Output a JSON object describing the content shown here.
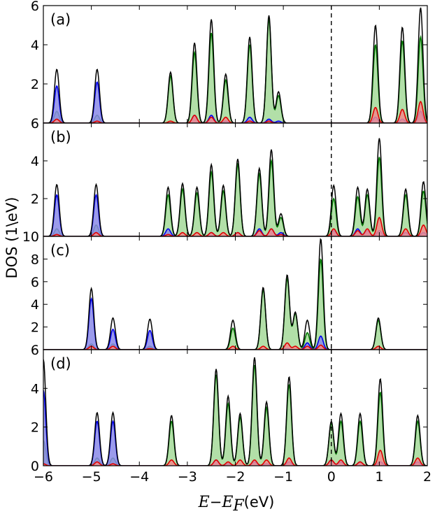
{
  "chart_data": {
    "type": "area",
    "xlabel_parts": [
      "E",
      "−",
      "E",
      "F",
      "(eV)"
    ],
    "ylabel": "DOS (1\\eV)",
    "xlim": [
      -6,
      2
    ],
    "x_ticks": [
      -6,
      -5,
      -4,
      -3,
      -2,
      -1,
      0,
      1,
      2
    ],
    "x_tick_labels": [
      "−6",
      "−5",
      "−4",
      "−3",
      "−2",
      "−1",
      "0",
      "1",
      "2"
    ],
    "fermi_level": 0,
    "gaussian_width_eV": 0.05,
    "colors": {
      "total": "#000000",
      "blue_line": "#0000ee",
      "blue_fill": "#8a8ae8",
      "green_line": "#007a00",
      "green_fill": "#b2dfa8",
      "red_line": "#e00000",
      "red_fill": "#f08c8c"
    },
    "series_roles": [
      "total",
      "blue",
      "green",
      "red"
    ],
    "panels": [
      {
        "label": "(a)",
        "ylim": [
          0,
          6
        ],
        "y_ticks": [
          2,
          4,
          6
        ],
        "y_tick_labels": [
          "2",
          "4",
          "6"
        ],
        "y_bottom_tick_label": "6",
        "peaks": [
          {
            "e": -5.72,
            "b": 1.9,
            "g": 0.6,
            "r": 0.2,
            "t": 2.75
          },
          {
            "e": -4.88,
            "b": 2.1,
            "g": 0.4,
            "r": 0.1,
            "t": 2.75
          },
          {
            "e": -3.35,
            "b": 0.0,
            "g": 2.4,
            "r": 0.1,
            "t": 2.6
          },
          {
            "e": -2.85,
            "b": 0.4,
            "g": 3.6,
            "r": 0.4,
            "t": 4.1
          },
          {
            "e": -2.5,
            "b": 0.4,
            "g": 4.6,
            "r": 0.3,
            "t": 5.3
          },
          {
            "e": -2.2,
            "b": 0.1,
            "g": 2.2,
            "r": 0.3,
            "t": 2.5
          },
          {
            "e": -1.7,
            "b": 0.3,
            "g": 4.0,
            "r": 0.1,
            "t": 4.4
          },
          {
            "e": -1.3,
            "b": 0.2,
            "g": 5.3,
            "r": 0.1,
            "t": 5.5
          },
          {
            "e": -1.1,
            "b": 0.1,
            "g": 1.4,
            "r": 0.0,
            "t": 1.6
          },
          {
            "e": 0.92,
            "b": 0.3,
            "g": 4.0,
            "r": 0.8,
            "t": 5.0
          },
          {
            "e": 1.48,
            "b": 0.2,
            "g": 4.2,
            "r": 0.7,
            "t": 4.9
          },
          {
            "e": 1.86,
            "b": 0.6,
            "g": 4.4,
            "r": 1.1,
            "t": 5.9
          }
        ]
      },
      {
        "label": "(b)",
        "ylim": [
          0,
          6
        ],
        "y_ticks": [
          2,
          4
        ],
        "y_tick_labels": [
          "2",
          "4"
        ],
        "y_bottom_tick_label": "10",
        "peaks": [
          {
            "e": -5.72,
            "b": 2.2,
            "g": 0.4,
            "r": 0.1,
            "t": 2.75
          },
          {
            "e": -4.9,
            "b": 2.2,
            "g": 0.6,
            "r": 0.2,
            "t": 2.75
          },
          {
            "e": -3.4,
            "b": 0.4,
            "g": 2.2,
            "r": 0.1,
            "t": 2.6
          },
          {
            "e": -3.1,
            "b": 0.0,
            "g": 2.5,
            "r": 0.2,
            "t": 2.8
          },
          {
            "e": -2.8,
            "b": 0.0,
            "g": 2.3,
            "r": 0.2,
            "t": 2.6
          },
          {
            "e": -2.5,
            "b": 0.2,
            "g": 3.4,
            "r": 0.2,
            "t": 3.8
          },
          {
            "e": -2.25,
            "b": 0.0,
            "g": 2.4,
            "r": 0.2,
            "t": 2.7
          },
          {
            "e": -1.95,
            "b": 0.2,
            "g": 3.8,
            "r": 0.2,
            "t": 4.1
          },
          {
            "e": -1.5,
            "b": 0.4,
            "g": 3.3,
            "r": 0.3,
            "t": 3.6
          },
          {
            "e": -1.25,
            "b": 0.4,
            "g": 4.0,
            "r": 0.4,
            "t": 4.6
          },
          {
            "e": -1.05,
            "b": 0.2,
            "g": 1.0,
            "r": 0.1,
            "t": 1.2
          },
          {
            "e": 0.05,
            "b": 0.3,
            "g": 2.0,
            "r": 0.4,
            "t": 2.7
          },
          {
            "e": 0.55,
            "b": 0.4,
            "g": 2.1,
            "r": 0.3,
            "t": 2.6
          },
          {
            "e": 0.75,
            "b": 0.3,
            "g": 2.2,
            "r": 0.4,
            "t": 2.5
          },
          {
            "e": 1.0,
            "b": 0.3,
            "g": 4.2,
            "r": 1.0,
            "t": 5.2
          },
          {
            "e": 1.55,
            "b": 0.2,
            "g": 2.2,
            "r": 0.4,
            "t": 2.5
          },
          {
            "e": 1.92,
            "b": 0.2,
            "g": 2.4,
            "r": 0.6,
            "t": 2.9
          }
        ]
      },
      {
        "label": "(c)",
        "ylim": [
          0,
          10
        ],
        "y_ticks": [
          2,
          4,
          6,
          8
        ],
        "y_tick_labels": [
          "2",
          "4",
          "6",
          "8"
        ],
        "y_bottom_tick_label": "6",
        "peaks": [
          {
            "e": -5.0,
            "b": 4.5,
            "g": 0.5,
            "r": 0.3,
            "t": 5.4
          },
          {
            "e": -4.55,
            "b": 1.8,
            "g": 0.5,
            "r": 0.3,
            "t": 2.8
          },
          {
            "e": -3.78,
            "b": 1.7,
            "g": 0.3,
            "r": 0.1,
            "t": 2.7
          },
          {
            "e": -2.05,
            "b": 0.0,
            "g": 1.9,
            "r": 0.3,
            "t": 2.6
          },
          {
            "e": -1.42,
            "b": 0.0,
            "g": 5.3,
            "r": 0.3,
            "t": 5.5
          },
          {
            "e": -0.92,
            "b": 0.1,
            "g": 6.3,
            "r": 0.6,
            "t": 6.6
          },
          {
            "e": -0.75,
            "b": 0.0,
            "g": 3.2,
            "r": 0.3,
            "t": 3.3
          },
          {
            "e": -0.5,
            "b": 0.6,
            "g": 1.5,
            "r": 0.3,
            "t": 2.6
          },
          {
            "e": -0.22,
            "b": 1.2,
            "g": 8.0,
            "r": 0.4,
            "t": 9.8
          },
          {
            "e": 0.98,
            "b": 0.0,
            "g": 2.6,
            "r": 0.3,
            "t": 2.8
          }
        ]
      },
      {
        "label": "(d)",
        "ylim": [
          0,
          6
        ],
        "y_ticks": [
          0,
          2,
          4
        ],
        "y_tick_labels": [
          "0",
          "2",
          "4"
        ],
        "y_bottom_tick_label": "",
        "peaks": [
          {
            "e": -6.0,
            "b": 3.9,
            "g": 1.3,
            "r": 0.1,
            "t": 5.5
          },
          {
            "e": -4.88,
            "b": 2.3,
            "g": 0.4,
            "r": 0.2,
            "t": 2.75
          },
          {
            "e": -4.55,
            "b": 2.3,
            "g": 0.4,
            "r": 0.1,
            "t": 2.75
          },
          {
            "e": -3.33,
            "b": 0.0,
            "g": 2.3,
            "r": 0.3,
            "t": 2.6
          },
          {
            "e": -2.4,
            "b": 0.3,
            "g": 4.7,
            "r": 0.3,
            "t": 5.0
          },
          {
            "e": -2.15,
            "b": 0.1,
            "g": 3.2,
            "r": 0.2,
            "t": 3.6
          },
          {
            "e": -1.9,
            "b": 0.0,
            "g": 2.5,
            "r": 0.3,
            "t": 2.7
          },
          {
            "e": -1.6,
            "b": 0.2,
            "g": 5.2,
            "r": 0.3,
            "t": 5.6
          },
          {
            "e": -1.35,
            "b": 0.1,
            "g": 3.0,
            "r": 0.3,
            "t": 3.3
          },
          {
            "e": -0.88,
            "b": 0.2,
            "g": 4.2,
            "r": 0.4,
            "t": 4.6
          },
          {
            "e": 0.0,
            "b": 0.3,
            "g": 2.2,
            "r": 0.3,
            "t": 2.3
          },
          {
            "e": 0.2,
            "b": 0.2,
            "g": 2.3,
            "r": 0.3,
            "t": 2.7
          },
          {
            "e": 0.6,
            "b": 0.2,
            "g": 2.3,
            "r": 0.2,
            "t": 2.7
          },
          {
            "e": 1.02,
            "b": 0.2,
            "g": 3.8,
            "r": 0.8,
            "t": 4.5
          },
          {
            "e": 1.8,
            "b": 0.2,
            "g": 2.3,
            "r": 0.4,
            "t": 2.6
          }
        ]
      }
    ]
  }
}
